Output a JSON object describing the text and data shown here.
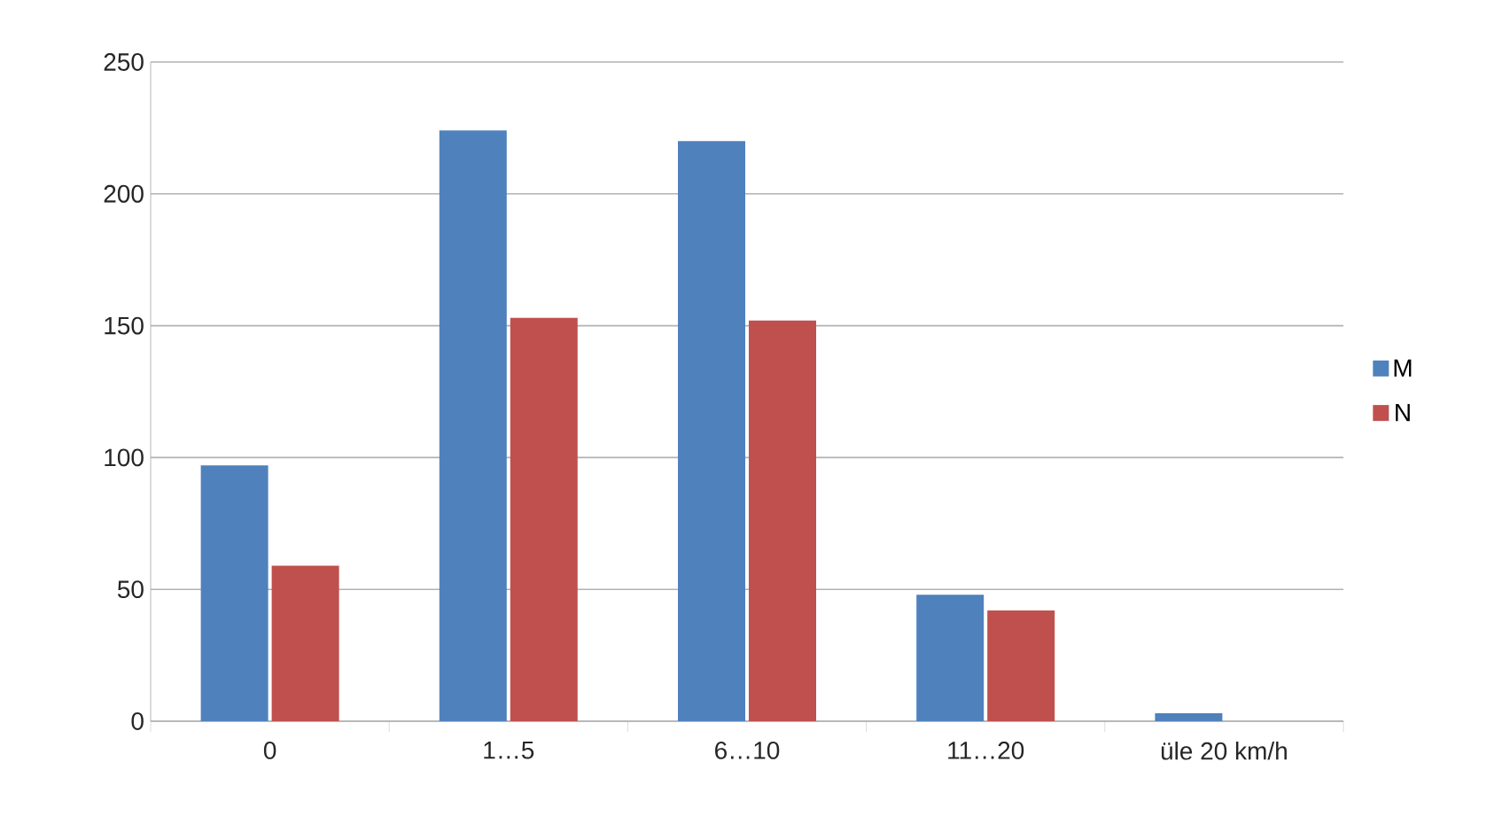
{
  "chart_data": {
    "type": "bar",
    "categories": [
      "0",
      "1…5",
      "6…10",
      "11…20",
      "üle 20 km/h"
    ],
    "series": [
      {
        "name": "M",
        "color": "#4f81bd",
        "values": [
          97,
          224,
          220,
          48,
          3
        ]
      },
      {
        "name": "N",
        "color": "#c0504d",
        "values": [
          59,
          153,
          152,
          42,
          0
        ]
      }
    ],
    "ylim": [
      0,
      250
    ],
    "yticks": [
      0,
      50,
      100,
      150,
      200,
      250
    ],
    "grid": "y",
    "legend": "right"
  }
}
